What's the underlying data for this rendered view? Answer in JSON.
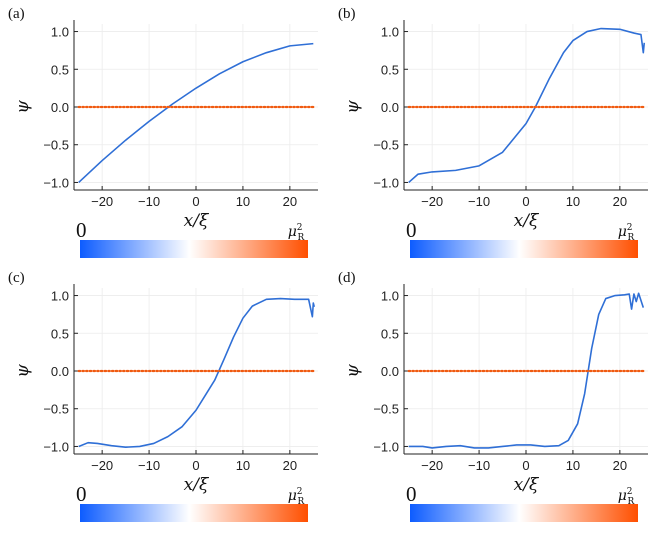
{
  "chart_data": [
    {
      "panel": "(a)",
      "type": "line",
      "xlabel": "x/ξ",
      "ylabel": "ψ",
      "xlim": [
        -26,
        26
      ],
      "ylim": [
        -1.1,
        1.1
      ],
      "xticks": [
        "−20",
        "−10",
        "0",
        "10",
        "20"
      ],
      "yticks": [
        "−1.0",
        "−0.5",
        "0.0",
        "0.5",
        "1.0"
      ],
      "grid": true,
      "series": [
        {
          "name": "psi",
          "style": "solid",
          "x": [
            -25,
            -20,
            -15,
            -10,
            -5,
            0,
            5,
            10,
            15,
            20,
            25
          ],
          "y": [
            -1.0,
            -0.71,
            -0.44,
            -0.19,
            0.04,
            0.25,
            0.44,
            0.6,
            0.72,
            0.81,
            0.84
          ]
        },
        {
          "name": "potential",
          "style": "dotted",
          "x": [
            -25,
            25
          ],
          "y": [
            0.0,
            0.0
          ]
        }
      ],
      "colorbar": {
        "left_label": "0",
        "right_label": "μ",
        "right_label_sub": "R",
        "right_label_sup": "2",
        "white_at": 0.48
      }
    },
    {
      "panel": "(b)",
      "type": "line",
      "xlabel": "x/ξ",
      "ylabel": "ψ",
      "xlim": [
        -26,
        26
      ],
      "ylim": [
        -1.1,
        1.1
      ],
      "xticks": [
        "−20",
        "−10",
        "0",
        "10",
        "20"
      ],
      "yticks": [
        "−1.0",
        "−0.5",
        "0.0",
        "0.5",
        "1.0"
      ],
      "grid": true,
      "series": [
        {
          "name": "psi",
          "style": "solid",
          "x": [
            -25,
            -23,
            -20,
            -15,
            -10,
            -5,
            0,
            2,
            5,
            8,
            10,
            13,
            16,
            20,
            23,
            24.5,
            25,
            25.2
          ],
          "y": [
            -1.0,
            -0.89,
            -0.86,
            -0.84,
            -0.78,
            -0.6,
            -0.22,
            0.0,
            0.38,
            0.72,
            0.88,
            1.0,
            1.04,
            1.03,
            0.98,
            0.96,
            0.72,
            0.85
          ]
        },
        {
          "name": "potential",
          "style": "dotted",
          "x": [
            -25,
            25
          ],
          "y": [
            0.0,
            0.0
          ]
        }
      ],
      "colorbar": {
        "left_label": "0",
        "right_label": "μ",
        "right_label_sub": "R",
        "right_label_sup": "2",
        "white_at": 0.48
      }
    },
    {
      "panel": "(c)",
      "type": "line",
      "xlabel": "x/ξ",
      "ylabel": "ψ",
      "xlim": [
        -26,
        26
      ],
      "ylim": [
        -1.1,
        1.1
      ],
      "xticks": [
        "−20",
        "−10",
        "0",
        "10",
        "20"
      ],
      "yticks": [
        "−1.0",
        "−0.5",
        "0.0",
        "0.5",
        "1.0"
      ],
      "grid": true,
      "series": [
        {
          "name": "psi",
          "style": "solid",
          "x": [
            -25,
            -23,
            -21,
            -18,
            -15,
            -12,
            -9,
            -6,
            -3,
            0,
            2,
            4,
            6,
            8,
            10,
            12,
            15,
            18,
            21,
            24,
            24.8,
            25,
            25.2
          ],
          "y": [
            -1.0,
            -0.95,
            -0.96,
            -0.99,
            -1.01,
            -1.0,
            -0.96,
            -0.87,
            -0.74,
            -0.52,
            -0.32,
            -0.12,
            0.16,
            0.45,
            0.7,
            0.86,
            0.95,
            0.96,
            0.95,
            0.95,
            0.72,
            0.9,
            0.85
          ]
        },
        {
          "name": "potential",
          "style": "dotted",
          "x": [
            -25,
            25
          ],
          "y": [
            0.0,
            0.0
          ]
        }
      ],
      "colorbar": {
        "left_label": "0",
        "right_label": "μ",
        "right_label_sub": "R",
        "right_label_sup": "2",
        "white_at": 0.48
      }
    },
    {
      "panel": "(d)",
      "type": "line",
      "xlabel": "x/ξ",
      "ylabel": "ψ",
      "xlim": [
        -26,
        26
      ],
      "ylim": [
        -1.1,
        1.1
      ],
      "xticks": [
        "−20",
        "−10",
        "0",
        "10",
        "20"
      ],
      "yticks": [
        "−1.0",
        "−0.5",
        "0.0",
        "0.5",
        "1.0"
      ],
      "grid": true,
      "series": [
        {
          "name": "psi",
          "style": "solid",
          "x": [
            -25,
            -22,
            -20,
            -17,
            -14,
            -11,
            -8,
            -5,
            -2,
            1,
            4,
            7,
            9,
            11,
            12.5,
            14,
            15.5,
            17,
            19,
            21,
            22,
            22.5,
            23,
            23.5,
            24,
            25
          ],
          "y": [
            -1.0,
            -1.0,
            -1.02,
            -1.0,
            -0.99,
            -1.02,
            -1.02,
            -1.0,
            -0.98,
            -0.98,
            -1.0,
            -0.99,
            -0.92,
            -0.7,
            -0.3,
            0.3,
            0.75,
            0.96,
            1.0,
            1.01,
            1.02,
            0.82,
            1.02,
            0.92,
            1.03,
            0.84
          ]
        },
        {
          "name": "potential",
          "style": "dotted",
          "x": [
            -25,
            25
          ],
          "y": [
            0.0,
            0.0
          ]
        }
      ],
      "colorbar": {
        "left_label": "0",
        "right_label": "μ",
        "right_label_sub": "R",
        "right_label_sup": "2",
        "white_at": 0.48
      }
    }
  ],
  "colors": {
    "psi": "#2f6fd6",
    "potential": "#f05a10",
    "grid": "#ececec",
    "cb_left": "#0d5cff",
    "cb_mid": "#ffffff",
    "cb_right": "#ff4f00"
  }
}
